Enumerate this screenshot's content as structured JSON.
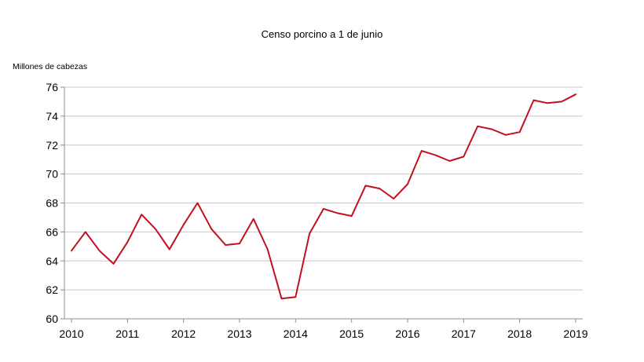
{
  "chart_data": {
    "type": "line",
    "title": "Censo porcino a 1 de junio",
    "ylabel": "Millones de cabezas",
    "xlabel": "",
    "ylim": [
      60,
      76
    ],
    "yticks": [
      60,
      62,
      64,
      66,
      68,
      70,
      72,
      74,
      76
    ],
    "xlim": [
      2010,
      2019
    ],
    "xticks": [
      "2010",
      "2011",
      "2012",
      "2013",
      "2014",
      "2015",
      "2016",
      "2017",
      "2018",
      "2019"
    ],
    "grid": "horizontal",
    "legend": "none",
    "series": [
      {
        "color": "#c0111f",
        "points": [
          [
            2010.0,
            64.7
          ],
          [
            2010.25,
            66.0
          ],
          [
            2010.5,
            64.7
          ],
          [
            2010.75,
            63.8
          ],
          [
            2011.0,
            65.3
          ],
          [
            2011.25,
            67.2
          ],
          [
            2011.5,
            66.2
          ],
          [
            2011.75,
            64.8
          ],
          [
            2012.0,
            66.5
          ],
          [
            2012.25,
            68.0
          ],
          [
            2012.5,
            66.2
          ],
          [
            2012.75,
            65.1
          ],
          [
            2013.0,
            65.2
          ],
          [
            2013.25,
            66.9
          ],
          [
            2013.5,
            64.8
          ],
          [
            2013.75,
            61.4
          ],
          [
            2014.0,
            61.5
          ],
          [
            2014.25,
            65.9
          ],
          [
            2014.5,
            67.6
          ],
          [
            2014.75,
            67.3
          ],
          [
            2015.0,
            67.1
          ],
          [
            2015.25,
            69.2
          ],
          [
            2015.5,
            69.0
          ],
          [
            2015.75,
            68.3
          ],
          [
            2016.0,
            69.3
          ],
          [
            2016.25,
            71.6
          ],
          [
            2016.5,
            71.3
          ],
          [
            2016.75,
            70.9
          ],
          [
            2017.0,
            71.2
          ],
          [
            2017.25,
            73.3
          ],
          [
            2017.5,
            73.1
          ],
          [
            2017.75,
            72.7
          ],
          [
            2018.0,
            72.9
          ],
          [
            2018.25,
            75.1
          ],
          [
            2018.5,
            74.9
          ],
          [
            2018.75,
            75.0
          ],
          [
            2019.0,
            75.5
          ]
        ]
      }
    ]
  }
}
